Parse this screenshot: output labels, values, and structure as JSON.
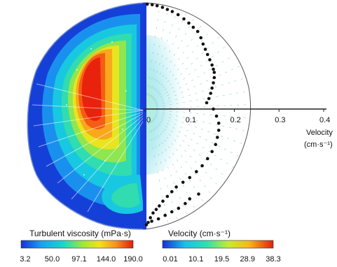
{
  "chart_data": {
    "type": "scatter",
    "panels": [
      {
        "name": "turbulent-viscosity-contour",
        "colorbar": {
          "title": "Turbulent viscosity (mPa·s)",
          "ticks": [
            "3.2",
            "50.0",
            "97.1",
            "144.0",
            "190.0"
          ],
          "range": [
            3.2,
            190.0
          ]
        }
      },
      {
        "name": "velocity-vectors",
        "colorbar": {
          "title": "Velocity (cm·s⁻¹)",
          "ticks": [
            "0.01",
            "10.1",
            "19.5",
            "28.9",
            "38.3"
          ],
          "range": [
            0.01,
            38.3
          ]
        }
      }
    ],
    "velocity_axis": {
      "label_line1": "Velocity",
      "label_line2": "(cm·s⁻¹)",
      "ticks": [
        "0",
        "0.1",
        "0.2",
        "0.3",
        "0.4"
      ],
      "range": [
        0,
        0.4
      ]
    },
    "profile_points": [
      [
        0.005,
        1.0
      ],
      [
        0.016,
        0.995
      ],
      [
        0.027,
        0.985
      ],
      [
        0.039,
        0.97
      ],
      [
        0.05,
        0.95
      ],
      [
        0.061,
        0.93
      ],
      [
        0.074,
        0.9
      ],
      [
        0.087,
        0.86
      ],
      [
        0.098,
        0.82
      ],
      [
        0.108,
        0.78
      ],
      [
        0.118,
        0.74
      ],
      [
        0.125,
        0.68
      ],
      [
        0.13,
        0.62
      ],
      [
        0.135,
        0.57
      ],
      [
        0.14,
        0.52
      ],
      [
        0.145,
        0.47
      ],
      [
        0.15,
        0.42
      ],
      [
        0.153,
        0.38
      ],
      [
        0.155,
        0.35
      ],
      [
        0.155,
        0.3
      ],
      [
        0.153,
        0.25
      ],
      [
        0.15,
        0.2
      ],
      [
        0.147,
        0.15
      ],
      [
        0.143,
        0.1
      ],
      [
        0.138,
        0.06
      ],
      [
        0.153,
        0.0
      ],
      [
        0.16,
        -0.06
      ],
      [
        0.165,
        -0.12
      ],
      [
        0.165,
        -0.18
      ],
      [
        0.162,
        -0.24
      ],
      [
        0.158,
        -0.3
      ],
      [
        0.15,
        -0.36
      ],
      [
        0.14,
        -0.42
      ],
      [
        0.128,
        -0.48
      ],
      [
        0.115,
        -0.53
      ],
      [
        0.1,
        -0.58
      ],
      [
        0.085,
        -0.62
      ],
      [
        0.07,
        -0.66
      ],
      [
        0.06,
        -0.7
      ],
      [
        0.05,
        -0.74
      ],
      [
        0.04,
        -0.78
      ],
      [
        0.032,
        -0.82
      ],
      [
        0.025,
        -0.85
      ],
      [
        0.018,
        -0.88
      ],
      [
        0.012,
        -0.92
      ],
      [
        0.007,
        -0.96
      ],
      [
        0.003,
        -0.98
      ],
      [
        0.12,
        -0.72
      ],
      [
        0.1,
        -0.76
      ],
      [
        0.09,
        -0.8
      ],
      [
        0.075,
        -0.84
      ],
      [
        0.06,
        -0.87
      ],
      [
        0.045,
        -0.9
      ],
      [
        0.03,
        -0.93
      ],
      [
        0.015,
        -0.95
      ]
    ]
  }
}
